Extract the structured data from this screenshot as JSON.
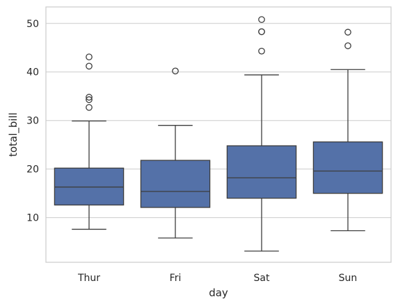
{
  "chart_data": {
    "type": "box",
    "xlabel": "day",
    "ylabel": "total_bill",
    "ylim": [
      0.8,
      53.4
    ],
    "yticks": [
      10,
      20,
      30,
      40,
      50
    ],
    "grid": "horizontal",
    "box_color": "#5471a8",
    "line_color": "#3d3d3d",
    "categories": [
      "Thur",
      "Fri",
      "Sat",
      "Sun"
    ],
    "boxes": [
      {
        "category": "Thur",
        "whisker_low": 7.6,
        "q1": 12.6,
        "median": 16.3,
        "q3": 20.2,
        "whisker_high": 29.9,
        "outliers": [
          32.7,
          34.3,
          34.8,
          41.2,
          43.1
        ]
      },
      {
        "category": "Fri",
        "whisker_low": 5.8,
        "q1": 12.1,
        "median": 15.4,
        "q3": 21.8,
        "whisker_high": 29.0,
        "outliers": [
          40.2
        ]
      },
      {
        "category": "Sat",
        "whisker_low": 3.1,
        "q1": 14.0,
        "median": 18.2,
        "q3": 24.8,
        "whisker_high": 39.4,
        "outliers": [
          44.3,
          48.3,
          48.3,
          50.8
        ]
      },
      {
        "category": "Sun",
        "whisker_low": 7.3,
        "q1": 15.0,
        "median": 19.6,
        "q3": 25.6,
        "whisker_high": 40.5,
        "outliers": [
          45.4,
          48.2
        ]
      }
    ]
  }
}
